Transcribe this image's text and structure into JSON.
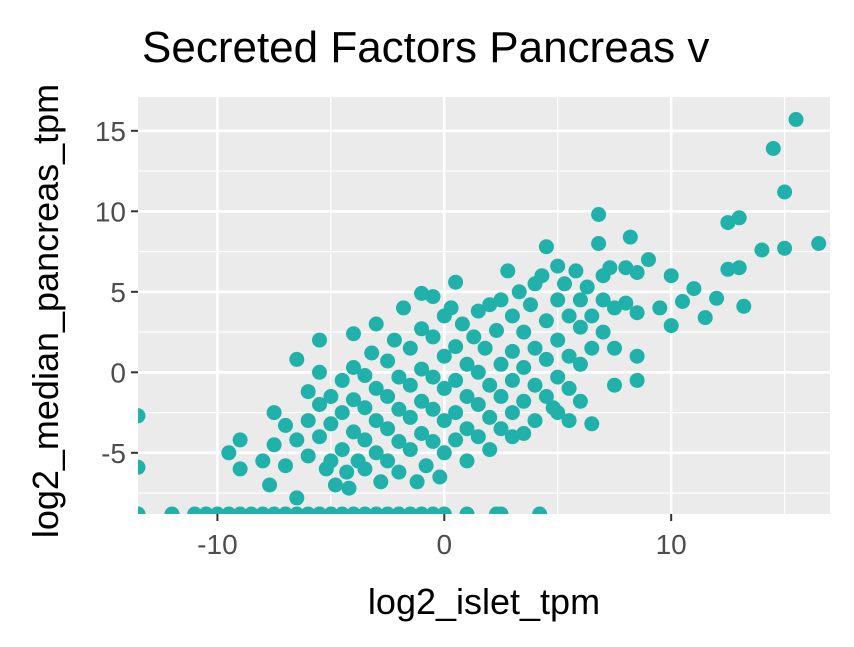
{
  "chart_data": {
    "type": "scatter",
    "title": "Secreted Factors Pancreas v",
    "xlabel": "log2_islet_tpm",
    "ylabel": "log2_median_pancreas_tpm",
    "xlim": [
      -13.5,
      17.0
    ],
    "ylim": [
      -8.8,
      17.1
    ],
    "x_ticks": [
      -10,
      0,
      10
    ],
    "x_tick_labels": [
      "-10",
      "0",
      "10"
    ],
    "y_ticks": [
      -5,
      0,
      5,
      10,
      15
    ],
    "y_tick_labels": [
      "-5",
      "0",
      "5",
      "10",
      "15"
    ],
    "grid": true,
    "legend": "none",
    "colors": {
      "panel": "#ebebeb",
      "grid": "#ffffff",
      "point": "#20b2aa",
      "tick": "#333333"
    },
    "series": [
      {
        "points": [
          [
            -13.5,
            -2.7
          ],
          [
            -13.5,
            -5.9
          ],
          [
            -13.5,
            -8.8
          ],
          [
            -12.0,
            -8.8
          ],
          [
            -11.0,
            -8.8
          ],
          [
            -10.5,
            -8.8
          ],
          [
            -10.0,
            -8.8
          ],
          [
            -9.5,
            -8.8
          ],
          [
            -9.0,
            -8.8
          ],
          [
            -8.5,
            -8.8
          ],
          [
            -8.0,
            -8.8
          ],
          [
            -7.5,
            -8.8
          ],
          [
            -7.0,
            -8.8
          ],
          [
            -6.5,
            -8.8
          ],
          [
            -6.0,
            -8.8
          ],
          [
            -5.5,
            -8.8
          ],
          [
            -5.0,
            -8.8
          ],
          [
            -4.5,
            -8.8
          ],
          [
            -4.0,
            -8.8
          ],
          [
            -3.5,
            -8.8
          ],
          [
            -3.0,
            -8.8
          ],
          [
            -2.5,
            -8.8
          ],
          [
            -2.0,
            -8.8
          ],
          [
            -1.5,
            -8.8
          ],
          [
            -1.0,
            -8.8
          ],
          [
            -0.5,
            -8.8
          ],
          [
            0.0,
            -8.8
          ],
          [
            1.0,
            -8.8
          ],
          [
            2.3,
            -8.8
          ],
          [
            2.5,
            -8.8
          ],
          [
            4.2,
            -8.8
          ],
          [
            -9.0,
            -4.2
          ],
          [
            -9.5,
            -5.0
          ],
          [
            -9.0,
            -6.0
          ],
          [
            -8.0,
            -5.5
          ],
          [
            -7.7,
            -7.0
          ],
          [
            -7.5,
            -2.5
          ],
          [
            -7.5,
            -4.5
          ],
          [
            -7.0,
            -3.3
          ],
          [
            -7.0,
            -5.8
          ],
          [
            -6.5,
            -7.8
          ],
          [
            -6.5,
            -4.2
          ],
          [
            -6.5,
            0.8
          ],
          [
            -6.0,
            -1.2
          ],
          [
            -6.0,
            -3.0
          ],
          [
            -6.0,
            -5.2
          ],
          [
            -5.5,
            2.0
          ],
          [
            -5.5,
            0.0
          ],
          [
            -5.5,
            -2.0
          ],
          [
            -5.5,
            -4.0
          ],
          [
            -5.2,
            -6.0
          ],
          [
            -5.0,
            -1.5
          ],
          [
            -5.0,
            -3.2
          ],
          [
            -5.0,
            -5.5
          ],
          [
            -4.8,
            -7.0
          ],
          [
            -4.5,
            -0.5
          ],
          [
            -4.5,
            -2.5
          ],
          [
            -4.5,
            -4.8
          ],
          [
            -4.3,
            -6.2
          ],
          [
            -4.2,
            -7.2
          ],
          [
            -4.0,
            2.4
          ],
          [
            -4.0,
            0.3
          ],
          [
            -4.0,
            -1.7
          ],
          [
            -4.0,
            -3.7
          ],
          [
            -3.8,
            -5.5
          ],
          [
            -3.5,
            -0.2
          ],
          [
            -3.5,
            -2.2
          ],
          [
            -3.5,
            -4.2
          ],
          [
            -3.5,
            -6.0
          ],
          [
            -3.2,
            1.2
          ],
          [
            -3.0,
            3.0
          ],
          [
            -3.0,
            -1.0
          ],
          [
            -3.0,
            -3.0
          ],
          [
            -3.0,
            -5.0
          ],
          [
            -2.8,
            -6.8
          ],
          [
            -2.5,
            0.7
          ],
          [
            -2.5,
            -1.5
          ],
          [
            -2.5,
            -3.5
          ],
          [
            -2.5,
            -5.5
          ],
          [
            -2.2,
            2.0
          ],
          [
            -2.0,
            -0.3
          ],
          [
            -2.0,
            -2.3
          ],
          [
            -2.0,
            -4.3
          ],
          [
            -2.0,
            -6.2
          ],
          [
            -1.8,
            4.0
          ],
          [
            -1.5,
            1.5
          ],
          [
            -1.5,
            -0.8
          ],
          [
            -1.5,
            -2.8
          ],
          [
            -1.5,
            -4.8
          ],
          [
            -1.2,
            -6.8
          ],
          [
            -1.0,
            4.9
          ],
          [
            -1.0,
            2.7
          ],
          [
            -1.0,
            0.2
          ],
          [
            -1.0,
            -1.8
          ],
          [
            -1.0,
            -3.8
          ],
          [
            -0.8,
            -5.8
          ],
          [
            -0.5,
            4.7
          ],
          [
            -0.5,
            2.2
          ],
          [
            -0.5,
            -0.3
          ],
          [
            -0.5,
            -2.3
          ],
          [
            -0.5,
            -4.3
          ],
          [
            -0.2,
            -6.5
          ],
          [
            0.0,
            3.5
          ],
          [
            0.0,
            1.0
          ],
          [
            0.0,
            -1.0
          ],
          [
            0.0,
            -3.0
          ],
          [
            0.0,
            -5.0
          ],
          [
            0.3,
            4.0
          ],
          [
            0.5,
            5.6
          ],
          [
            0.5,
            1.6
          ],
          [
            0.5,
            -0.5
          ],
          [
            0.5,
            -2.5
          ],
          [
            0.5,
            -4.2
          ],
          [
            0.8,
            3.0
          ],
          [
            1.0,
            0.5
          ],
          [
            1.0,
            -1.5
          ],
          [
            1.0,
            -3.5
          ],
          [
            1.0,
            -5.5
          ],
          [
            1.3,
            2.2
          ],
          [
            1.5,
            3.8
          ],
          [
            1.5,
            0.0
          ],
          [
            1.5,
            -2.0
          ],
          [
            1.5,
            -4.0
          ],
          [
            1.8,
            1.5
          ],
          [
            2.0,
            4.2
          ],
          [
            2.0,
            -0.8
          ],
          [
            2.0,
            -2.8
          ],
          [
            2.0,
            -4.8
          ],
          [
            2.3,
            2.6
          ],
          [
            2.5,
            4.5
          ],
          [
            2.5,
            0.5
          ],
          [
            2.5,
            -1.5
          ],
          [
            2.5,
            -3.5
          ],
          [
            2.8,
            6.3
          ],
          [
            3.0,
            3.5
          ],
          [
            3.0,
            1.3
          ],
          [
            3.0,
            -0.5
          ],
          [
            3.0,
            -2.5
          ],
          [
            3.0,
            -4.0
          ],
          [
            3.3,
            5.0
          ],
          [
            3.5,
            2.5
          ],
          [
            3.5,
            0.3
          ],
          [
            3.5,
            -1.8
          ],
          [
            3.5,
            -3.8
          ],
          [
            3.8,
            4.2
          ],
          [
            4.0,
            5.5
          ],
          [
            4.0,
            1.5
          ],
          [
            4.0,
            -0.8
          ],
          [
            4.0,
            -3.0
          ],
          [
            4.3,
            6.0
          ],
          [
            4.5,
            7.8
          ],
          [
            4.5,
            3.2
          ],
          [
            4.5,
            0.8
          ],
          [
            4.5,
            -1.5
          ],
          [
            4.8,
            -2.2
          ],
          [
            5.0,
            6.6
          ],
          [
            5.0,
            4.5
          ],
          [
            5.0,
            2.0
          ],
          [
            5.0,
            -0.3
          ],
          [
            5.0,
            -2.5
          ],
          [
            5.3,
            5.5
          ],
          [
            5.5,
            3.5
          ],
          [
            5.5,
            1.0
          ],
          [
            5.5,
            -1.0
          ],
          [
            5.5,
            -3.0
          ],
          [
            5.8,
            6.3
          ],
          [
            6.0,
            4.5
          ],
          [
            6.0,
            2.8
          ],
          [
            6.0,
            0.5
          ],
          [
            6.0,
            -1.8
          ],
          [
            6.3,
            5.3
          ],
          [
            6.5,
            3.5
          ],
          [
            6.5,
            1.5
          ],
          [
            6.5,
            -3.2
          ],
          [
            6.8,
            9.8
          ],
          [
            6.8,
            8.0
          ],
          [
            7.0,
            6.0
          ],
          [
            7.0,
            4.5
          ],
          [
            7.0,
            2.5
          ],
          [
            7.3,
            6.5
          ],
          [
            7.5,
            4.0
          ],
          [
            7.5,
            1.5
          ],
          [
            7.5,
            -0.8
          ],
          [
            8.0,
            6.5
          ],
          [
            8.0,
            4.3
          ],
          [
            8.2,
            8.4
          ],
          [
            8.5,
            6.2
          ],
          [
            8.5,
            3.7
          ],
          [
            8.5,
            1.0
          ],
          [
            8.5,
            -0.5
          ],
          [
            9.0,
            7.0
          ],
          [
            9.5,
            4.0
          ],
          [
            10.0,
            2.9
          ],
          [
            10.0,
            6.0
          ],
          [
            10.5,
            4.4
          ],
          [
            11.0,
            5.2
          ],
          [
            11.5,
            3.4
          ],
          [
            12.0,
            4.6
          ],
          [
            12.5,
            6.4
          ],
          [
            12.5,
            9.3
          ],
          [
            13.0,
            9.6
          ],
          [
            13.0,
            6.5
          ],
          [
            13.2,
            4.1
          ],
          [
            14.0,
            7.6
          ],
          [
            14.5,
            13.9
          ],
          [
            15.0,
            11.2
          ],
          [
            15.0,
            7.7
          ],
          [
            15.5,
            15.7
          ],
          [
            16.5,
            8.0
          ]
        ]
      }
    ]
  }
}
